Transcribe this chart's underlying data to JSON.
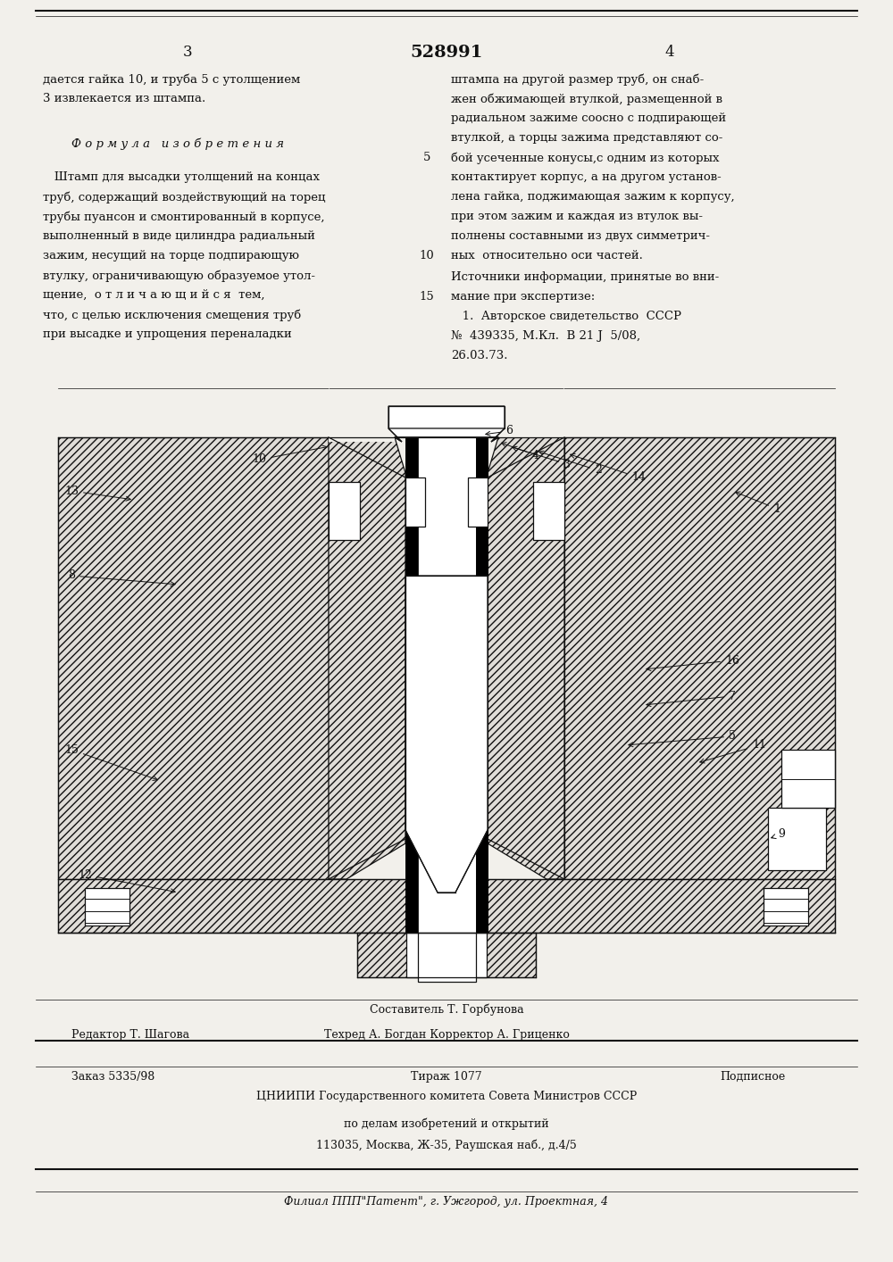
{
  "patent_number": "528991",
  "page_left": "3",
  "page_right": "4",
  "bg_color": "#f2f0eb",
  "text_color": "#111111",
  "col1_text": [
    "дается гайка 10, и труба 5 с утолщением",
    "3 извлекается из штампа."
  ],
  "formula_header": "Ф о р м у л а   и з о б р е т е н и я",
  "col1_body": [
    "   Штамп для высадки утолщений на концах",
    "труб, содержащий воздействующий на торец",
    "трубы пуансон и смонтированный в корпусе,",
    "выполненный в виде цилиндра радиальный",
    "зажим, несущий на торце подпирающую",
    "втулку, ограничивающую образуемое утол-",
    "щение,  о т л и ч а ю щ и й с я  тем,",
    "что, с целью исключения смещения труб",
    "при высадке и упрощения переналадки"
  ],
  "col2_text_top": [
    "штампа на другой размер труб, он снаб-",
    "жен обжимающей втулкой, размещенной в",
    "радиальном зажиме соосно с подпирающей",
    "втулкой, а торцы зажима представляют со-",
    "бой усеченные конусы,с одним из которых",
    "контактирует корпус, а на другом установ-",
    "лена гайка, поджимающая зажим к корпусу,",
    "при этом зажим и каждая из втулок вы-",
    "полнены составными из двух симметрич-",
    "ных  относительно оси частей."
  ],
  "sources_header": "Источники информации, принятые во вни-",
  "sources_header2": "мание при экспертизе:",
  "sources_body": [
    "   1.  Авторское свидетельство  СССР",
    "№  439335, М.Кл.  В 21 J  5/08,",
    "26.03.73."
  ],
  "footer_editor": "Редактор Т. Шагова",
  "footer_composer": "Составитель Т. Горбунова",
  "footer_tech": "Техред А. Богдан Корректор А. Гриценко",
  "footer_order": "Заказ 5335/98",
  "footer_circulation": "Тираж 1077",
  "footer_subscription": "Подписное",
  "footer_org": "ЦНИИПИ Государственного комитета Совета Министров СССР",
  "footer_dept": "по делам изобретений и открытий",
  "footer_address": "113035, Москва, Ж-35, Раушская наб., д.4/5",
  "footer_branch": "Филиал ППП\"Патент\", г. Ужгород, ул. Проектная, 4",
  "line_color": "#111111",
  "hatch_color": "#333333"
}
